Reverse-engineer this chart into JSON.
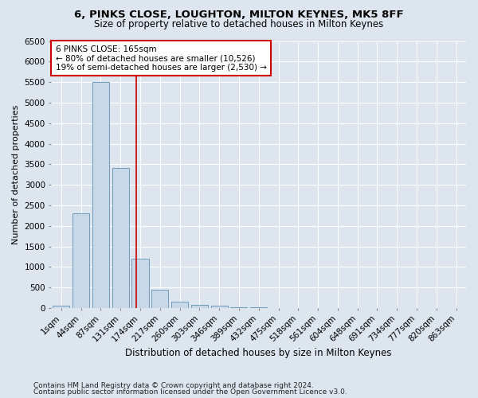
{
  "title1": "6, PINKS CLOSE, LOUGHTON, MILTON KEYNES, MK5 8FF",
  "title2": "Size of property relative to detached houses in Milton Keynes",
  "xlabel": "Distribution of detached houses by size in Milton Keynes",
  "ylabel": "Number of detached properties",
  "footnote1": "Contains HM Land Registry data © Crown copyright and database right 2024.",
  "footnote2": "Contains public sector information licensed under the Open Government Licence v3.0.",
  "categories": [
    "1sqm",
    "44sqm",
    "87sqm",
    "131sqm",
    "174sqm",
    "217sqm",
    "260sqm",
    "303sqm",
    "346sqm",
    "389sqm",
    "432sqm",
    "475sqm",
    "518sqm",
    "561sqm",
    "604sqm",
    "648sqm",
    "691sqm",
    "734sqm",
    "777sqm",
    "820sqm",
    "863sqm"
  ],
  "values": [
    50,
    2300,
    5500,
    3400,
    1200,
    450,
    150,
    75,
    50,
    25,
    10,
    5,
    2,
    1,
    1,
    0,
    0,
    0,
    0,
    0,
    0
  ],
  "bar_color": "#c8d8e8",
  "bar_edge_color": "#6090b0",
  "vline_color": "#cc0000",
  "annotation_text": "6 PINKS CLOSE: 165sqm\n← 80% of detached houses are smaller (10,526)\n19% of semi-detached houses are larger (2,530) →",
  "annotation_box_color": "white",
  "annotation_box_edge": "#cc0000",
  "ylim": [
    0,
    6500
  ],
  "yticks": [
    0,
    500,
    1000,
    1500,
    2000,
    2500,
    3000,
    3500,
    4000,
    4500,
    5000,
    5500,
    6000,
    6500
  ],
  "bg_color": "#dde6ef",
  "plot_bg_color": "#dde6ef",
  "grid_color": "white",
  "title1_fontsize": 9.5,
  "title2_fontsize": 8.5,
  "xlabel_fontsize": 8.5,
  "ylabel_fontsize": 8,
  "tick_fontsize": 7.5,
  "footnote_fontsize": 6.5,
  "annot_fontsize": 7.5
}
